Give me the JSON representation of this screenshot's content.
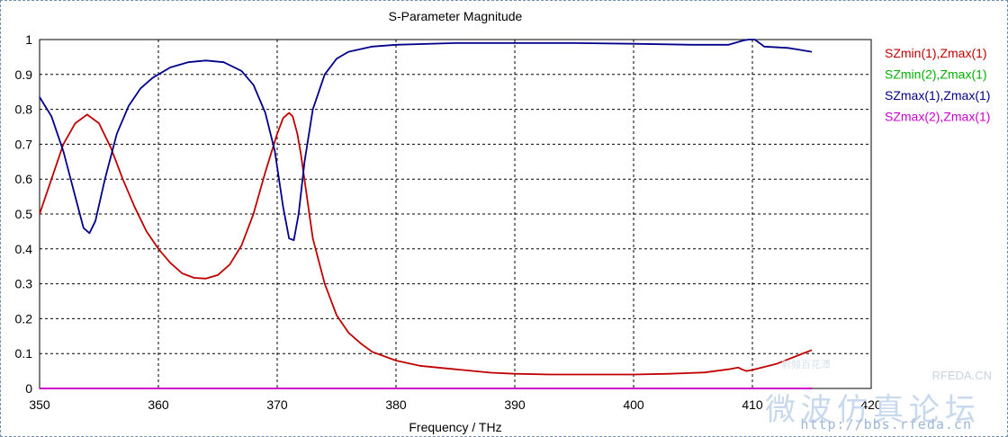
{
  "chart_data": {
    "type": "line",
    "title": "S-Parameter Magnitude",
    "xlabel": "Frequency / THz",
    "ylabel": "",
    "xlim": [
      350,
      420
    ],
    "ylim": [
      0,
      1
    ],
    "xticks": [
      350,
      360,
      370,
      380,
      390,
      400,
      410,
      420
    ],
    "yticks": [
      0,
      0.1,
      0.2,
      0.3,
      0.4,
      0.5,
      0.6,
      0.7,
      0.8,
      0.9,
      1
    ],
    "ytick_labels": [
      "0",
      "0.1",
      "0.2",
      "0.3",
      "0.4",
      "0.5",
      "0.6",
      "0.7",
      "0.8",
      "0.9",
      "1"
    ],
    "grid": true,
    "legend_position": "right",
    "series": [
      {
        "name": "SZmin(1),Zmax(1)",
        "color": "#c00000",
        "x": [
          350,
          351,
          352,
          353,
          354,
          355,
          356,
          357,
          358,
          359,
          360,
          361,
          362,
          363,
          364,
          365,
          366,
          367,
          368,
          369,
          370,
          370.5,
          371,
          371.3,
          371.7,
          372,
          372.5,
          373,
          374,
          375,
          376,
          377,
          378,
          380,
          382,
          385,
          388,
          390,
          393,
          396,
          400,
          403,
          406,
          408,
          408.8,
          409.1,
          409.5,
          410,
          412,
          415
        ],
        "y": [
          0.5,
          0.6,
          0.7,
          0.76,
          0.785,
          0.76,
          0.69,
          0.6,
          0.52,
          0.45,
          0.4,
          0.36,
          0.33,
          0.317,
          0.315,
          0.325,
          0.355,
          0.41,
          0.5,
          0.62,
          0.73,
          0.775,
          0.79,
          0.78,
          0.73,
          0.67,
          0.55,
          0.43,
          0.3,
          0.21,
          0.16,
          0.13,
          0.105,
          0.08,
          0.065,
          0.055,
          0.045,
          0.042,
          0.04,
          0.04,
          0.04,
          0.042,
          0.046,
          0.055,
          0.06,
          0.055,
          0.05,
          0.053,
          0.07,
          0.11
        ]
      },
      {
        "name": "SZmin(2),Zmax(1)",
        "color": "#00b000",
        "x": [
          350,
          415
        ],
        "y": [
          0,
          0
        ]
      },
      {
        "name": "SZmax(1),Zmax(1)",
        "color": "#00008b",
        "x": [
          350,
          351,
          352,
          353,
          353.7,
          354.2,
          354.7,
          355.5,
          356.5,
          357.5,
          358.5,
          359.5,
          361,
          362.5,
          364,
          365.5,
          367,
          368,
          369,
          369.8,
          370.5,
          371,
          371.4,
          371.8,
          372.3,
          373,
          374,
          375,
          376,
          378,
          380,
          385,
          390,
          395,
          400,
          405,
          408,
          409.3,
          409.7,
          410.2,
          410.6,
          411,
          413,
          415
        ],
        "y": [
          0.835,
          0.78,
          0.68,
          0.55,
          0.46,
          0.445,
          0.48,
          0.6,
          0.73,
          0.81,
          0.86,
          0.89,
          0.92,
          0.935,
          0.94,
          0.935,
          0.91,
          0.87,
          0.79,
          0.68,
          0.52,
          0.43,
          0.425,
          0.5,
          0.65,
          0.8,
          0.9,
          0.945,
          0.965,
          0.98,
          0.985,
          0.99,
          0.99,
          0.99,
          0.988,
          0.985,
          0.985,
          0.998,
          1.0,
          1.0,
          0.99,
          0.98,
          0.976,
          0.965
        ]
      },
      {
        "name": "SZmax(2),Zmax(1)",
        "color": "#cc00cc",
        "x": [
          350,
          415
        ],
        "y": [
          0,
          0
        ]
      }
    ]
  },
  "watermark": {
    "site_label": "RFEDA.CN",
    "big_text": "微波仿真论坛",
    "url": "http://bbs.rfeda.cn",
    "small_text": "射频百花潭"
  }
}
